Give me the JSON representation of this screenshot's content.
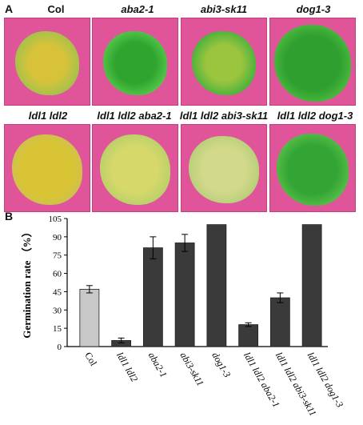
{
  "panelA": {
    "letter": "A",
    "row1": [
      {
        "label": "Col",
        "italic": false,
        "seedling": "yellow"
      },
      {
        "label": "aba2-1",
        "italic": true,
        "seedling": "green"
      },
      {
        "label": "abi3-sk11",
        "italic": true,
        "seedling": "mixed"
      },
      {
        "label": "dog1-3",
        "italic": true,
        "seedling": "green"
      }
    ],
    "row2": [
      {
        "label": "ldl1 ldl2",
        "italic": true,
        "seedling": "yellow"
      },
      {
        "label": "ldl1 ldl2 aba2-1",
        "italic": true,
        "seedling": "pale"
      },
      {
        "label": "ldl1 ldl2 abi3-sk11",
        "italic": true,
        "seedling": "pale"
      },
      {
        "label": "ldl1 ldl2 dog1-3",
        "italic": true,
        "seedling": "green"
      }
    ],
    "colors": {
      "background": "#e0559a",
      "yellow": "#d8c23a",
      "green": "#3fb63a",
      "pale": "#c9d77a",
      "mixed": "#9bc43f"
    }
  },
  "panelB": {
    "letter": "B"
  },
  "chart_data": {
    "type": "bar",
    "ylabel": "Germination rate （%）",
    "ylim": [
      0,
      105
    ],
    "yticks": [
      0,
      15,
      30,
      45,
      60,
      75,
      90,
      105
    ],
    "categories": [
      "Col",
      "ldl1 ldl2",
      "aba2-1",
      "abi3-sk11",
      "dog1-3",
      "ldl1 ldl2 aba2-1",
      "ldl1 ldl2 abi3-sk11",
      "ldl1 ldl2 dog1-3"
    ],
    "italic": [
      false,
      true,
      true,
      true,
      true,
      true,
      true,
      true
    ],
    "values": [
      47,
      5,
      81,
      85,
      100,
      18,
      40,
      100
    ],
    "errors": [
      3,
      2,
      9,
      7,
      0,
      1.5,
      4,
      0
    ],
    "bar_colors": [
      "#c8c8c8",
      "#3a3a3a",
      "#3a3a3a",
      "#3a3a3a",
      "#3a3a3a",
      "#3a3a3a",
      "#3a3a3a",
      "#3a3a3a"
    ]
  }
}
